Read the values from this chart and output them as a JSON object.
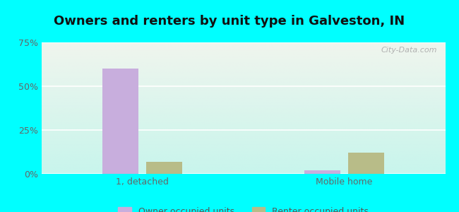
{
  "title": "Owners and renters by unit type in Galveston, IN",
  "categories": [
    "1, detached",
    "Mobile home"
  ],
  "owner_values": [
    60.0,
    2.0
  ],
  "renter_values": [
    7.0,
    12.0
  ],
  "owner_color": "#c8aedd",
  "renter_color": "#b8bc88",
  "ylim": [
    0,
    75
  ],
  "yticks": [
    0,
    25,
    50,
    75
  ],
  "ytick_labels": [
    "0%",
    "25%",
    "50%",
    "75%"
  ],
  "bar_width": 0.18,
  "outer_background": "#00ffff",
  "title_fontsize": 13,
  "tick_fontsize": 9,
  "legend_fontsize": 9,
  "watermark_text": "City-Data.com",
  "grad_top": "#f0f5ee",
  "grad_bottom": "#c8f5ec"
}
